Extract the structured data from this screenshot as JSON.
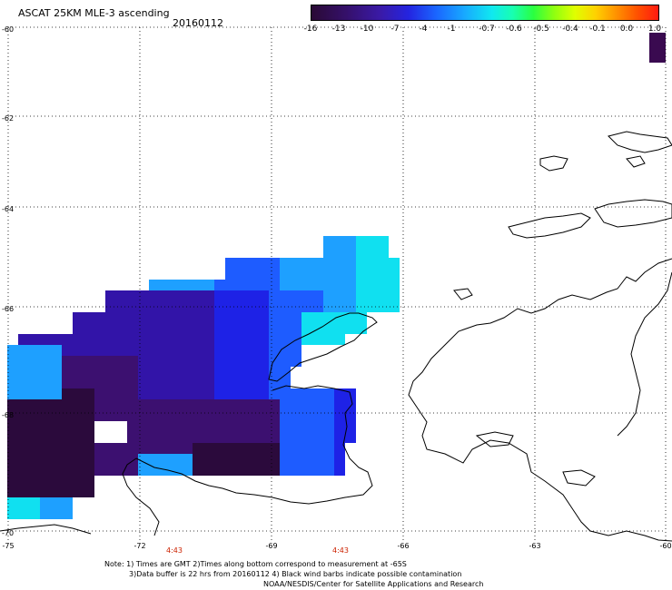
{
  "title": "ASCAT 25KM MLE-3 ascending",
  "date": "20160112",
  "colorbar": {
    "labels": [
      "-16",
      "-13",
      "-10",
      "-7",
      "-4",
      "-1",
      "-0.7",
      "-0.6",
      "-0.5",
      "-0.4",
      "-0.1",
      "0.0",
      "1.0"
    ]
  },
  "y_axis": {
    "labels": [
      "-60",
      "-62",
      "-64",
      "-66",
      "-68",
      "-70"
    ]
  },
  "x_axis": {
    "labels": [
      "-75",
      "-72",
      "-69",
      "-66",
      "-63",
      "-60"
    ]
  },
  "time_labels": [
    "4:43",
    "4:43"
  ],
  "notes": {
    "line1": "Note: 1) Times are GMT 2)Times along bottom correspond to measurement at -65S",
    "line2": "3)Data buffer is 22 hrs from 20160112 4) Black wind barbs indicate possible contamination",
    "line3": "NOAA/NESDIS/Center for Satellite Applications and Research"
  },
  "colors": {
    "dark_purple": "#2b0a3c",
    "purple": "#3c1070",
    "indigo": "#3214a8",
    "blue": "#1e22e6",
    "mid_blue": "#1e5cff",
    "sky_blue": "#1ea0ff",
    "cyan": "#10e0f0",
    "coastline": "#000000",
    "grid": "#000000",
    "time_text": "#cc2200"
  }
}
